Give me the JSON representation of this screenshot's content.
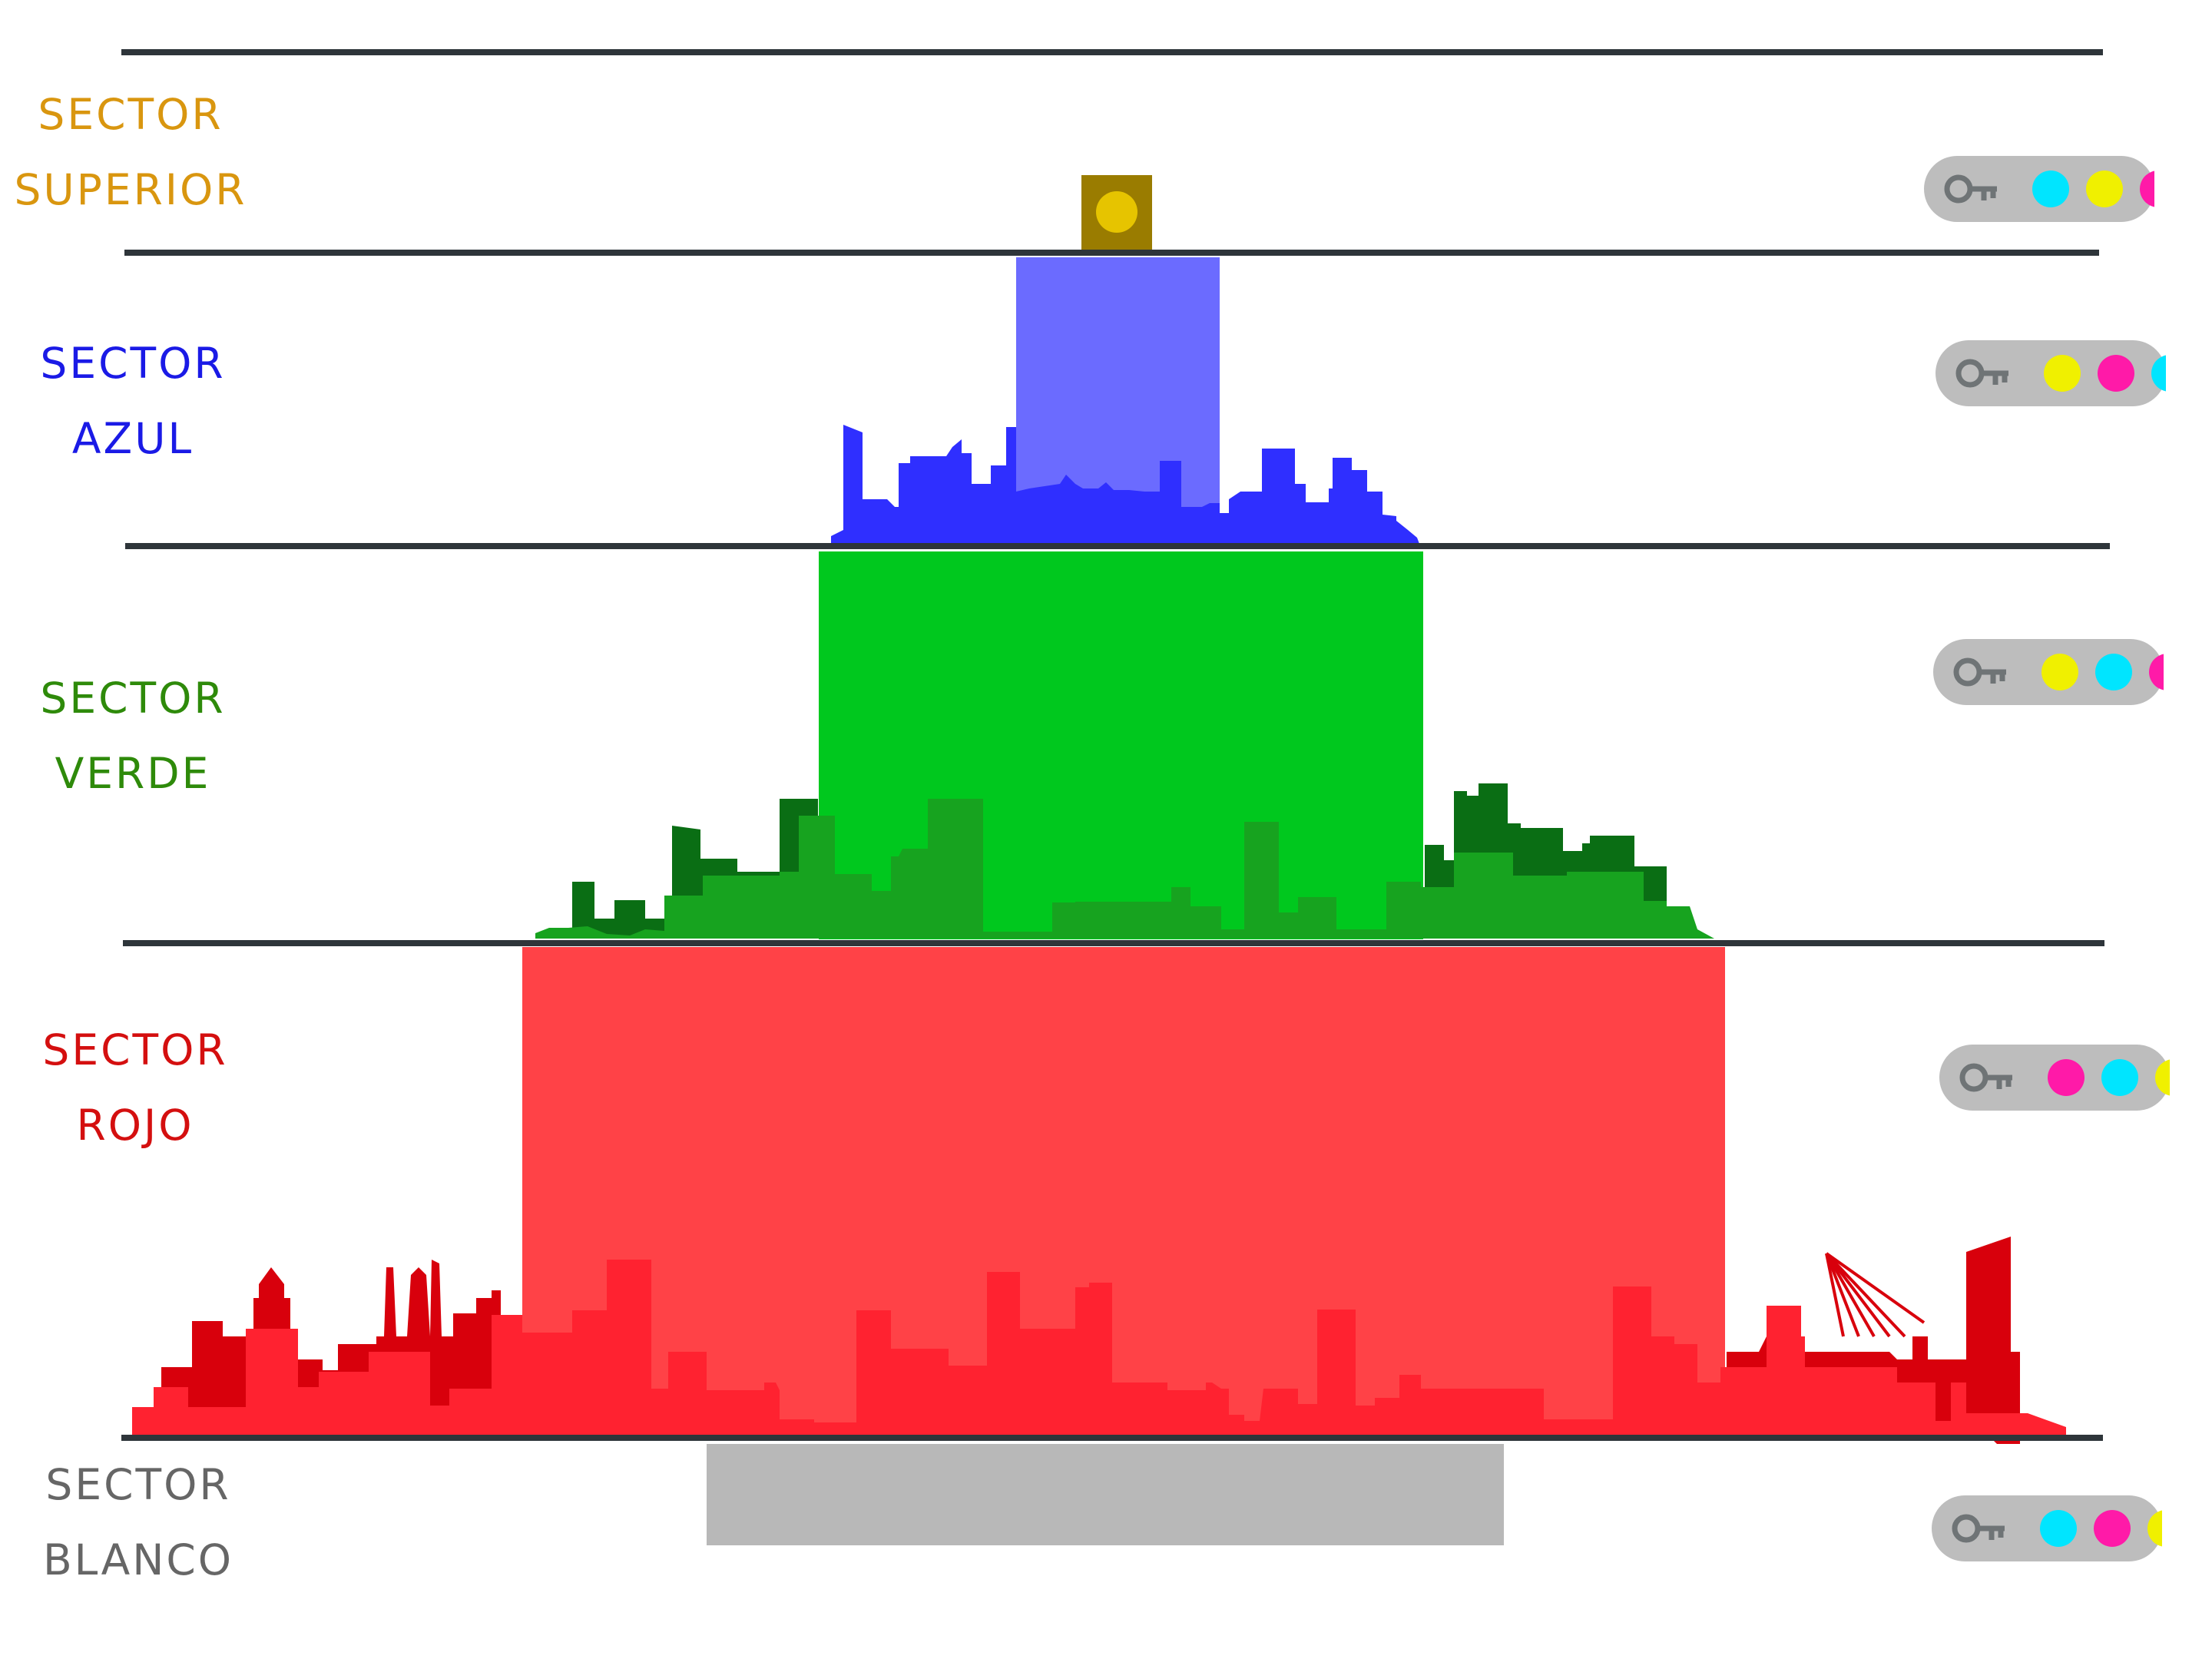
{
  "sectors": [
    {
      "line1": "SECTOR",
      "line2": "SUPERIOR",
      "color": "#d9960f",
      "dots": [
        "#00e5ff",
        "#f0f000",
        "#ff1aa8"
      ]
    },
    {
      "line1": "SECTOR",
      "line2": "AZUL",
      "color": "#1a1ae6",
      "dots": [
        "#f0f000",
        "#ff1aa8",
        "#00e5ff"
      ]
    },
    {
      "line1": "SECTOR",
      "line2": "VERDE",
      "color": "#2e8a0a",
      "dots": [
        "#f0f000",
        "#00e5ff",
        "#ff1aa8"
      ]
    },
    {
      "line1": "SECTOR",
      "line2": "ROJO",
      "color": "#d40f0f",
      "dots": [
        "#ff1aa8",
        "#00e5ff",
        "#f0f000"
      ]
    },
    {
      "line1": "SECTOR",
      "line2": "BLANCO",
      "color": "#666666",
      "dots": [
        "#00e5ff",
        "#ff1aa8",
        "#f0f000"
      ]
    }
  ],
  "colors": {
    "divider": "#2e353a",
    "key_icon": "#6f7476",
    "block_top": "#9a7c00",
    "block_top_dot": "#e6c400",
    "blue_fill": "#6b6bff",
    "blue_skyline": "#2f2fff",
    "green_fill": "#00c81e",
    "green_skyline_light": "#17a31f",
    "green_skyline_dark": "#0a6e14",
    "red_fill": "#ff4247",
    "red_skyline_light": "#ff2230",
    "red_skyline_dark": "#d8000c",
    "gray_fill": "#b8b8b8"
  },
  "icons": {
    "key": "key-icon",
    "dot": "color-dot"
  }
}
